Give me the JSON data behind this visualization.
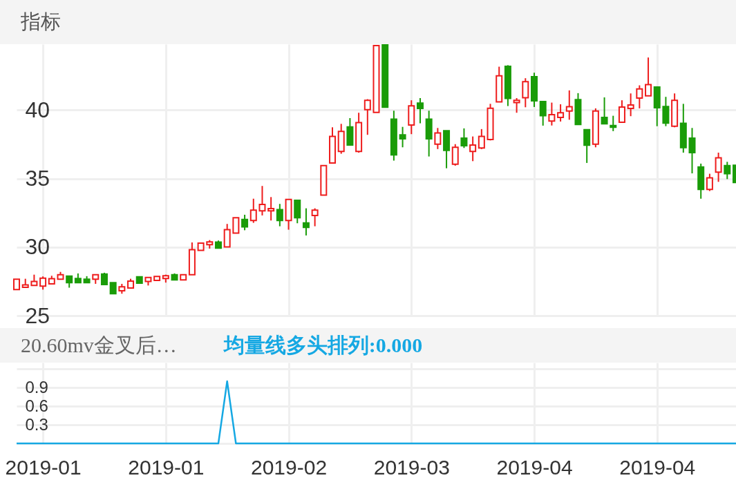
{
  "chart_data": [
    {
      "type": "candlestick",
      "title": "指标",
      "categories": [
        null,
        null,
        null,
        "2019-01",
        null,
        null,
        null,
        null,
        null,
        null,
        null,
        null,
        null,
        null,
        null,
        null,
        null,
        "2019-01",
        null,
        null,
        null,
        null,
        null,
        null,
        null,
        null,
        null,
        null,
        null,
        null,
        null,
        "2019-02",
        null,
        null,
        null,
        null,
        null,
        null,
        null,
        null,
        null,
        null,
        null,
        null,
        null,
        "2019-03",
        null,
        null,
        null,
        null,
        null,
        null,
        null,
        null,
        null,
        null,
        null,
        null,
        null,
        "2019-04",
        null,
        null,
        null,
        null,
        null,
        null,
        null,
        null,
        null,
        null,
        null,
        null,
        null,
        "2019-04",
        null,
        null,
        null,
        null,
        null,
        null,
        null,
        null,
        null
      ],
      "ohlc": [
        [
          26.9,
          27.66,
          26.9,
          27.66
        ],
        [
          27.07,
          27.69,
          27.07,
          27.24
        ],
        [
          27.2,
          27.99,
          27.2,
          27.49
        ],
        [
          27.15,
          27.86,
          26.9,
          27.74
        ],
        [
          27.32,
          27.91,
          27.32,
          27.69
        ],
        [
          27.66,
          28.19,
          27.66,
          27.99
        ],
        [
          27.88,
          27.91,
          27.04,
          27.41
        ],
        [
          27.71,
          28.08,
          27.37,
          27.41
        ],
        [
          27.66,
          27.88,
          27.41,
          27.41
        ],
        [
          27.66,
          27.99,
          27.32,
          27.99
        ],
        [
          28.04,
          28.13,
          27.27,
          27.27
        ],
        [
          27.41,
          27.41,
          26.6,
          26.6
        ],
        [
          26.82,
          27.32,
          26.6,
          27.1
        ],
        [
          27.02,
          27.69,
          27.02,
          27.52
        ],
        [
          27.83,
          27.86,
          27.37,
          27.37
        ],
        [
          27.49,
          27.78,
          27.2,
          27.78
        ],
        [
          27.57,
          27.86,
          27.57,
          27.86
        ],
        [
          27.71,
          27.99,
          27.41,
          27.91
        ],
        [
          27.99,
          28.08,
          27.61,
          27.61
        ],
        [
          27.61,
          27.99,
          27.61,
          27.99
        ],
        [
          27.99,
          30.34,
          27.99,
          29.81
        ],
        [
          29.76,
          30.29,
          29.76,
          30.29
        ],
        [
          30.18,
          30.51,
          29.89,
          30.38
        ],
        [
          30.36,
          30.48,
          29.93,
          29.93
        ],
        [
          30.01,
          31.69,
          30.01,
          31.27
        ],
        [
          31.02,
          32.14,
          31.02,
          32.14
        ],
        [
          32.02,
          32.36,
          31.23,
          31.47
        ],
        [
          31.94,
          33.53,
          31.77,
          32.7
        ],
        [
          32.64,
          34.46,
          32.31,
          33.11
        ],
        [
          32.64,
          33.65,
          31.94,
          32.81
        ],
        [
          32.73,
          33.15,
          31.52,
          31.94
        ],
        [
          31.94,
          33.48,
          31.27,
          33.48
        ],
        [
          33.42,
          33.42,
          31.74,
          32.14
        ],
        [
          31.77,
          32.83,
          30.85,
          31.44
        ],
        [
          32.31,
          32.83,
          31.52,
          32.7
        ],
        [
          33.79,
          35.94,
          33.79,
          35.94
        ],
        [
          36.14,
          38.74,
          36.14,
          38.07
        ],
        [
          36.98,
          38.99,
          36.81,
          38.44
        ],
        [
          38.77,
          39.41,
          37.4,
          37.45
        ],
        [
          36.98,
          39.8,
          36.89,
          39.08
        ],
        [
          40.03,
          40.79,
          38.19,
          40.71
        ],
        [
          39.83,
          44.7,
          39.83,
          44.7
        ],
        [
          44.79,
          44.8,
          40.2,
          40.2
        ],
        [
          39.33,
          39.95,
          36.31,
          36.73
        ],
        [
          38.19,
          38.77,
          37.28,
          37.9
        ],
        [
          38.91,
          40.71,
          38.24,
          40.3
        ],
        [
          40.5,
          40.87,
          39.03,
          40.12
        ],
        [
          39.33,
          39.95,
          36.61,
          37.9
        ],
        [
          37.51,
          38.69,
          37.15,
          38.32
        ],
        [
          38.49,
          38.49,
          35.75,
          37.06
        ],
        [
          36.05,
          37.51,
          35.94,
          37.28
        ],
        [
          37.95,
          38.66,
          37.23,
          37.4
        ],
        [
          36.98,
          38.07,
          36.27,
          37.45
        ],
        [
          37.23,
          38.61,
          37.15,
          38.07
        ],
        [
          37.85,
          40.45,
          37.78,
          40.13
        ],
        [
          40.59,
          43.16,
          40.59,
          42.49
        ],
        [
          43.19,
          43.27,
          40.29,
          40.84
        ],
        [
          40.54,
          40.87,
          39.8,
          40.71
        ],
        [
          40.89,
          42.32,
          40.2,
          42.07
        ],
        [
          42.43,
          42.72,
          40.22,
          40.67
        ],
        [
          40.62,
          40.62,
          38.86,
          39.58
        ],
        [
          39.19,
          40.54,
          38.87,
          39.66
        ],
        [
          39.46,
          40.42,
          39.16,
          39.8
        ],
        [
          39.92,
          41.43,
          39.29,
          40.24
        ],
        [
          40.76,
          41.23,
          38.94,
          38.94
        ],
        [
          38.57,
          38.57,
          36.14,
          37.43
        ],
        [
          37.51,
          40.12,
          37.28,
          39.92
        ],
        [
          39.46,
          40.92,
          38.99,
          38.99
        ],
        [
          38.87,
          39.58,
          38.46,
          38.74
        ],
        [
          39.11,
          40.71,
          39.11,
          40.22
        ],
        [
          40.12,
          41.21,
          39.55,
          40.37
        ],
        [
          40.87,
          41.8,
          40.12,
          41.54
        ],
        [
          41.04,
          43.83,
          41.04,
          41.85
        ],
        [
          41.68,
          41.73,
          38.82,
          40.17
        ],
        [
          40.25,
          40.96,
          38.82,
          39.04
        ],
        [
          38.82,
          41.21,
          38.74,
          40.71
        ],
        [
          39.03,
          40.45,
          36.89,
          37.26
        ],
        [
          37.95,
          38.69,
          35.38,
          36.89
        ],
        [
          35.84,
          36.09,
          33.53,
          34.21
        ],
        [
          34.21,
          35.35,
          34.09,
          35.05
        ],
        [
          35.47,
          36.89,
          34.76,
          36.51
        ],
        [
          35.94,
          36.22,
          34.96,
          35.35
        ],
        [
          35.97,
          35.97,
          34.71,
          34.71
        ]
      ],
      "colors": [
        "#ee1c1c",
        "#ee1c1c",
        "#ee1c1c",
        "#ee1c1c",
        "#ee1c1c",
        "#ee1c1c",
        "#1a9c08",
        "#1a9c08",
        "#1a9c08",
        "#ee1c1c",
        "#1a9c08",
        "#1a9c08",
        "#ee1c1c",
        "#ee1c1c",
        "#1a9c08",
        "#ee1c1c",
        "#ee1c1c",
        "#ee1c1c",
        "#1a9c08",
        "#ee1c1c",
        "#ee1c1c",
        "#ee1c1c",
        "#ee1c1c",
        "#1a9c08",
        "#ee1c1c",
        "#ee1c1c",
        "#1a9c08",
        "#ee1c1c",
        "#ee1c1c",
        "#ee1c1c",
        "#1a9c08",
        "#ee1c1c",
        "#1a9c08",
        "#1a9c08",
        "#ee1c1c",
        "#ee1c1c",
        "#ee1c1c",
        "#ee1c1c",
        "#1a9c08",
        "#ee1c1c",
        "#ee1c1c",
        "#ee1c1c",
        "#1a9c08",
        "#1a9c08",
        "#1a9c08",
        "#ee1c1c",
        "#1a9c08",
        "#1a9c08",
        "#ee1c1c",
        "#1a9c08",
        "#ee1c1c",
        "#1a9c08",
        "#ee1c1c",
        "#ee1c1c",
        "#ee1c1c",
        "#ee1c1c",
        "#1a9c08",
        "#ee1c1c",
        "#ee1c1c",
        "#1a9c08",
        "#1a9c08",
        "#ee1c1c",
        "#ee1c1c",
        "#ee1c1c",
        "#1a9c08",
        "#1a9c08",
        "#ee1c1c",
        "#1a9c08",
        "#1a9c08",
        "#ee1c1c",
        "#ee1c1c",
        "#ee1c1c",
        "#ee1c1c",
        "#1a9c08",
        "#1a9c08",
        "#ee1c1c",
        "#1a9c08",
        "#1a9c08",
        "#1a9c08",
        "#ee1c1c",
        "#ee1c1c",
        "#1a9c08",
        "#1a9c08"
      ],
      "ylim": [
        25,
        44.8
      ],
      "yticks": [
        25,
        30,
        35,
        40
      ],
      "grid": true,
      "tick_labels": "y"
    },
    {
      "type": "line",
      "title": "20.60mv金叉后…",
      "annotations": [
        "均量线多头排列:0.000"
      ],
      "categories": [
        null,
        null,
        null,
        "2019-01",
        null,
        null,
        null,
        null,
        null,
        null,
        null,
        null,
        null,
        null,
        null,
        null,
        null,
        "2019-01",
        null,
        null,
        null,
        null,
        null,
        null,
        null,
        null,
        null,
        null,
        null,
        null,
        null,
        "2019-02",
        null,
        null,
        null,
        null,
        null,
        null,
        null,
        null,
        null,
        null,
        null,
        null,
        null,
        "2019-03",
        null,
        null,
        null,
        null,
        null,
        null,
        null,
        null,
        null,
        null,
        null,
        null,
        null,
        "2019-04",
        null,
        null,
        null,
        null,
        null,
        null,
        null,
        null,
        null,
        null,
        null,
        null,
        null,
        "2019-04",
        null,
        null,
        null,
        null,
        null,
        null,
        null,
        null,
        null
      ],
      "series": [
        {
          "color": "#15a8e3",
          "values": [
            0,
            0,
            0,
            0,
            0,
            0,
            0,
            0,
            0,
            0,
            0,
            0,
            0,
            0,
            0,
            0,
            0,
            0,
            0,
            0,
            0,
            0,
            0,
            0,
            1,
            0,
            0,
            0,
            0,
            0,
            0,
            0,
            0,
            0,
            0,
            0,
            0,
            0,
            0,
            0,
            0,
            0,
            0,
            0,
            0,
            0,
            0,
            0,
            0,
            0,
            0,
            0,
            0,
            0,
            0,
            0,
            0,
            0,
            0,
            0,
            0,
            0,
            0,
            0,
            0,
            0,
            0,
            0,
            0,
            0,
            0,
            0,
            0,
            0,
            0,
            0,
            0,
            0,
            0,
            0,
            0,
            0,
            0
          ]
        }
      ],
      "ylim": [
        0,
        1.3
      ],
      "yticks": [
        {
          "value": 0,
          "label": null
        },
        0.3,
        0.6,
        0.9,
        {
          "value": 1.2,
          "label": null
        }
      ],
      "grid": true
    }
  ]
}
